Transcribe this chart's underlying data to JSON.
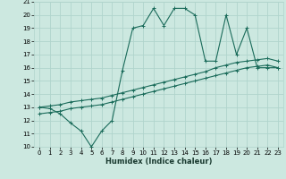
{
  "xlabel": "Humidex (Indice chaleur)",
  "xlim": [
    -0.5,
    23.5
  ],
  "ylim": [
    10,
    21
  ],
  "yticks": [
    10,
    11,
    12,
    13,
    14,
    15,
    16,
    17,
    18,
    19,
    20,
    21
  ],
  "xticks": [
    0,
    1,
    2,
    3,
    4,
    5,
    6,
    7,
    8,
    9,
    10,
    11,
    12,
    13,
    14,
    15,
    16,
    17,
    18,
    19,
    20,
    21,
    22,
    23
  ],
  "bg_color": "#cce8e0",
  "line_color": "#1a6b5a",
  "grid_color": "#b0d4cc",
  "line1_x": [
    0,
    1,
    2,
    3,
    4,
    5,
    6,
    7,
    8,
    9,
    10,
    11,
    12,
    13,
    14,
    15,
    16,
    17,
    18,
    19,
    20,
    21,
    22,
    23
  ],
  "line1_y": [
    13,
    12.9,
    12.5,
    11.8,
    11.2,
    10,
    11.2,
    12,
    15.8,
    19,
    19.2,
    20.5,
    19.2,
    20.5,
    20.5,
    20,
    16.5,
    16.5,
    20,
    17,
    19,
    16,
    16,
    16
  ],
  "line2_x": [
    0,
    1,
    2,
    3,
    4,
    5,
    6,
    7,
    8,
    9,
    10,
    11,
    12,
    13,
    14,
    15,
    16,
    17,
    18,
    19,
    20,
    21,
    22,
    23
  ],
  "line2_y": [
    13,
    13.1,
    13.2,
    13.4,
    13.5,
    13.6,
    13.7,
    13.9,
    14.1,
    14.3,
    14.5,
    14.7,
    14.9,
    15.1,
    15.3,
    15.5,
    15.7,
    16.0,
    16.2,
    16.4,
    16.5,
    16.6,
    16.7,
    16.5
  ],
  "line3_x": [
    0,
    1,
    2,
    3,
    4,
    5,
    6,
    7,
    8,
    9,
    10,
    11,
    12,
    13,
    14,
    15,
    16,
    17,
    18,
    19,
    20,
    21,
    22,
    23
  ],
  "line3_y": [
    12.5,
    12.6,
    12.7,
    12.9,
    13.0,
    13.1,
    13.2,
    13.4,
    13.6,
    13.8,
    14.0,
    14.2,
    14.4,
    14.6,
    14.8,
    15.0,
    15.2,
    15.4,
    15.6,
    15.8,
    16.0,
    16.1,
    16.2,
    16.0
  ]
}
